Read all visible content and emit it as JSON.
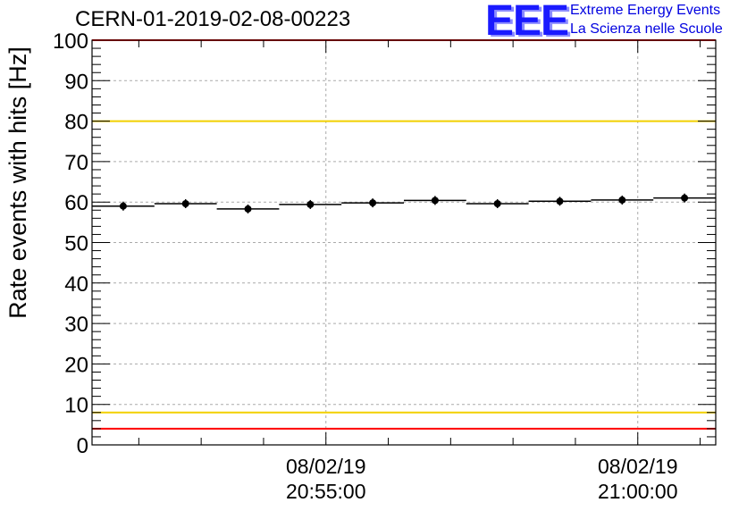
{
  "header": {
    "title": "CERN-01-2019-02-08-00223",
    "logo_text": "EEE",
    "logo_line1": "Extreme Energy Events",
    "logo_line2": "La Scienza nelle Scuole"
  },
  "colors": {
    "points": "#000000",
    "red_lines": "#ff0000",
    "yellow_lines": "#f2d000",
    "grid": "#aaaaaa",
    "logo": "#1a1aff"
  },
  "chart_data": {
    "type": "scatter",
    "title": "CERN-01-2019-02-08-00223",
    "ylabel": "Rate events with hits [Hz]",
    "xlabel": "",
    "ylim": [
      0,
      100
    ],
    "yticks": [
      0,
      10,
      20,
      30,
      40,
      50,
      60,
      70,
      80,
      90,
      100
    ],
    "xlim": [
      "2019-02-08 20:51:15",
      "2019-02-08 21:01:15"
    ],
    "xticks": [
      {
        "time": "2019-02-08 20:55:00",
        "date_label": "08/02/19",
        "time_label": "20:55:00"
      },
      {
        "time": "2019-02-08 21:00:00",
        "date_label": "08/02/19",
        "time_label": "21:00:00"
      }
    ],
    "grid": true,
    "bin_width_seconds": 60,
    "points": [
      {
        "x": "2019-02-08 20:51:45",
        "y": 59.0
      },
      {
        "x": "2019-02-08 20:52:45",
        "y": 59.6
      },
      {
        "x": "2019-02-08 20:53:45",
        "y": 58.3
      },
      {
        "x": "2019-02-08 20:54:45",
        "y": 59.4
      },
      {
        "x": "2019-02-08 20:55:45",
        "y": 59.8
      },
      {
        "x": "2019-02-08 20:56:45",
        "y": 60.4
      },
      {
        "x": "2019-02-08 20:57:45",
        "y": 59.6
      },
      {
        "x": "2019-02-08 20:58:45",
        "y": 60.2
      },
      {
        "x": "2019-02-08 20:59:45",
        "y": 60.5
      },
      {
        "x": "2019-02-08 21:00:45",
        "y": 61.0
      }
    ],
    "reference_lines": [
      {
        "y": 100,
        "color": "#ff0000"
      },
      {
        "y": 80,
        "color": "#f2d000"
      },
      {
        "y": 8,
        "color": "#f2d000"
      },
      {
        "y": 4,
        "color": "#ff0000"
      }
    ]
  }
}
